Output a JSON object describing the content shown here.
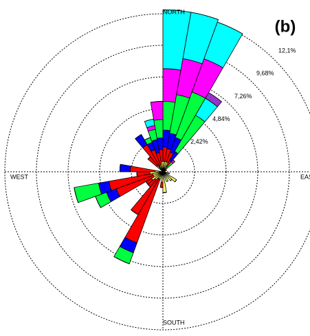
{
  "chart_data": {
    "type": "wind-rose",
    "title": "(b)",
    "x": [
      5,
      15,
      25,
      35,
      45,
      65,
      105,
      125,
      135,
      155,
      175,
      185,
      205,
      215,
      225,
      235,
      245,
      255,
      265,
      275,
      315,
      325,
      335,
      345,
      355
    ],
    "series": [
      {
        "color": "#ffff66",
        "values": [
          0.8,
          0.8,
          0.8,
          0.5,
          0.4,
          0.3,
          0.5,
          1.2,
          0.9,
          0.8,
          1.6,
          0.8,
          0.6,
          0.6,
          0.8,
          1.0,
          0.8,
          0.8,
          1.0,
          0.6,
          0.6,
          0.4,
          0.5,
          0.6,
          0.8
        ]
      },
      {
        "color": "#ff0000",
        "values": [
          1.1,
          1.0,
          0.8,
          0.5,
          0,
          0,
          0,
          0,
          0,
          0,
          0,
          0.4,
          5.2,
          3.2,
          0.7,
          0.5,
          3.0,
          3.4,
          1.0,
          1.9,
          0.9,
          2.0,
          1.3,
          0.9,
          0.9
        ]
      },
      {
        "color": "#0000ff",
        "values": [
          1.3,
          1.2,
          1.2,
          0.8,
          0,
          0,
          0,
          0,
          0,
          0,
          0,
          0,
          0.8,
          0,
          0,
          0,
          0.8,
          0.8,
          0,
          0.8,
          0,
          0.9,
          0.6,
          1.0,
          0.9
        ]
      },
      {
        "color": "#00ff40",
        "values": [
          2.2,
          3.0,
          3.7,
          3.2,
          0.6,
          0,
          0,
          0,
          0,
          0,
          0,
          0,
          0.9,
          0,
          0,
          0,
          0.9,
          1.9,
          0,
          0,
          0,
          0,
          0.4,
          0.8,
          1.4
        ]
      },
      {
        "color": "#ff00ff",
        "values": [
          2.5,
          2.8,
          2.7,
          0,
          0.2,
          0,
          0,
          0,
          0,
          0,
          0,
          0,
          0,
          0,
          0,
          0,
          0,
          0,
          0,
          0,
          0,
          0,
          0,
          0.3,
          1.4
        ]
      },
      {
        "color": "#00ffff",
        "values": [
          4.5,
          3.6,
          3.0,
          1.5,
          0,
          0,
          0,
          0,
          0,
          0,
          0,
          0,
          0,
          0,
          0,
          0,
          0,
          0,
          0,
          0,
          0,
          0,
          0,
          0.5,
          0
        ]
      },
      {
        "color": "#9933cc",
        "values": [
          0,
          0,
          0,
          0.5,
          0,
          0,
          0,
          0,
          0,
          0,
          0,
          0,
          0,
          0,
          0,
          0,
          0,
          0,
          0,
          0,
          0,
          0,
          0,
          0,
          0
        ]
      }
    ],
    "rlim": [
      0,
      12.1
    ],
    "rticks": [
      {
        "value": 2.42,
        "label": "2,42%"
      },
      {
        "value": 4.84,
        "label": "4,84%"
      },
      {
        "value": 7.26,
        "label": "7,26%"
      },
      {
        "value": 9.68,
        "label": "9,68%"
      },
      {
        "value": 12.1,
        "label": "12,1%"
      }
    ],
    "compass_labels": [
      "NORTH",
      "EAST",
      "SOUTH",
      "WEST"
    ],
    "grid": true
  }
}
